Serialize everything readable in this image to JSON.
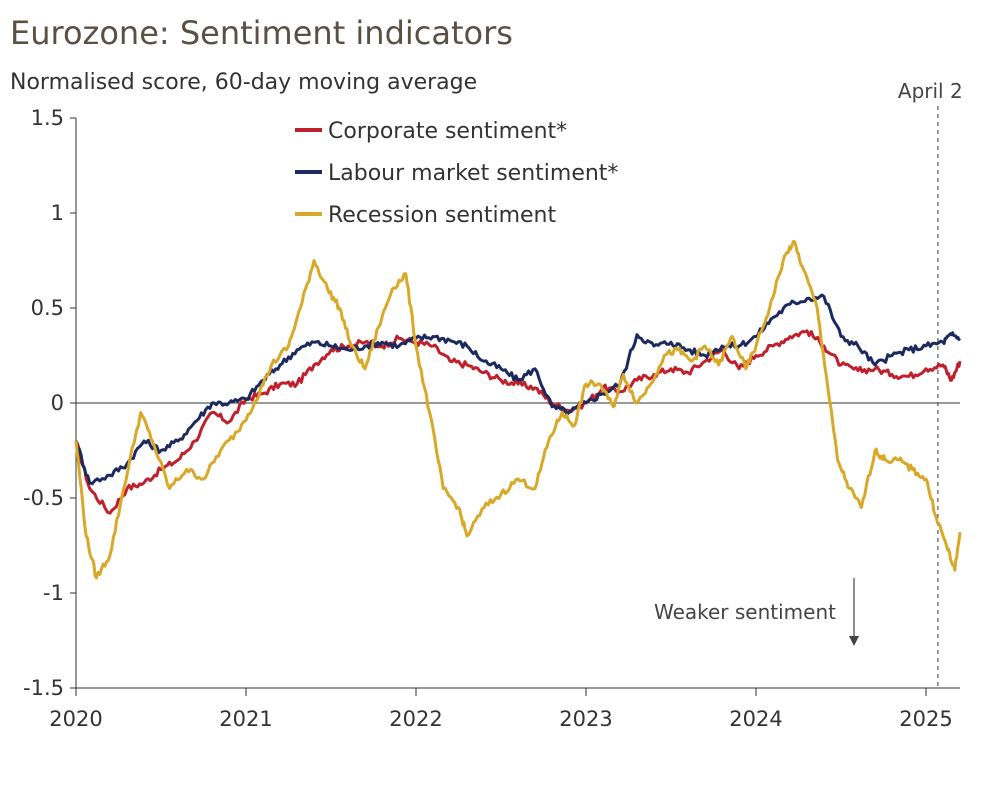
{
  "chart_data": {
    "type": "line",
    "title": "Eurozone: Sentiment indicators",
    "subtitle": "Normalised score, 60-day moving average",
    "xlabel": "",
    "ylabel": "",
    "xlim": [
      2020,
      2025.2
    ],
    "ylim": [
      -1.5,
      1.5
    ],
    "x_ticks": [
      "2020",
      "2021",
      "2022",
      "2023",
      "2024",
      "2025"
    ],
    "y_ticks": [
      "1.5",
      "1",
      "0.5",
      "0",
      "-0.5",
      "-1",
      "-1.5"
    ],
    "legend": [
      "Corporate sentiment*",
      "Labour market sentiment*",
      "Recession sentiment"
    ],
    "series": [
      {
        "name": "Corporate sentiment*",
        "color": "#c0202b",
        "points": [
          [
            2020.0,
            -0.2
          ],
          [
            2020.08,
            -0.45
          ],
          [
            2020.2,
            -0.58
          ],
          [
            2020.3,
            -0.45
          ],
          [
            2020.4,
            -0.42
          ],
          [
            2020.5,
            -0.35
          ],
          [
            2020.6,
            -0.3
          ],
          [
            2020.7,
            -0.2
          ],
          [
            2020.8,
            -0.05
          ],
          [
            2020.9,
            -0.1
          ],
          [
            2021.0,
            0.02
          ],
          [
            2021.1,
            0.05
          ],
          [
            2021.2,
            0.1
          ],
          [
            2021.3,
            0.1
          ],
          [
            2021.4,
            0.2
          ],
          [
            2021.5,
            0.28
          ],
          [
            2021.6,
            0.3
          ],
          [
            2021.7,
            0.32
          ],
          [
            2021.8,
            0.3
          ],
          [
            2021.9,
            0.34
          ],
          [
            2022.0,
            0.32
          ],
          [
            2022.1,
            0.3
          ],
          [
            2022.2,
            0.22
          ],
          [
            2022.3,
            0.2
          ],
          [
            2022.4,
            0.16
          ],
          [
            2022.5,
            0.12
          ],
          [
            2022.6,
            0.1
          ],
          [
            2022.7,
            0.08
          ],
          [
            2022.8,
            0.0
          ],
          [
            2022.9,
            -0.04
          ],
          [
            2023.0,
            0.0
          ],
          [
            2023.1,
            0.08
          ],
          [
            2023.2,
            0.06
          ],
          [
            2023.3,
            0.12
          ],
          [
            2023.4,
            0.15
          ],
          [
            2023.5,
            0.18
          ],
          [
            2023.6,
            0.16
          ],
          [
            2023.7,
            0.22
          ],
          [
            2023.8,
            0.28
          ],
          [
            2023.9,
            0.18
          ],
          [
            2024.0,
            0.25
          ],
          [
            2024.1,
            0.3
          ],
          [
            2024.2,
            0.35
          ],
          [
            2024.3,
            0.38
          ],
          [
            2024.4,
            0.3
          ],
          [
            2024.5,
            0.2
          ],
          [
            2024.6,
            0.17
          ],
          [
            2024.7,
            0.18
          ],
          [
            2024.8,
            0.15
          ],
          [
            2024.9,
            0.14
          ],
          [
            2025.0,
            0.18
          ],
          [
            2025.1,
            0.2
          ],
          [
            2025.15,
            0.12
          ],
          [
            2025.2,
            0.22
          ]
        ]
      },
      {
        "name": "Labour market sentiment*",
        "color": "#1c2a5e",
        "points": [
          [
            2020.0,
            -0.2
          ],
          [
            2020.08,
            -0.42
          ],
          [
            2020.2,
            -0.38
          ],
          [
            2020.3,
            -0.32
          ],
          [
            2020.4,
            -0.2
          ],
          [
            2020.5,
            -0.25
          ],
          [
            2020.6,
            -0.2
          ],
          [
            2020.7,
            -0.1
          ],
          [
            2020.8,
            -0.0
          ],
          [
            2020.9,
            0.0
          ],
          [
            2021.0,
            0.02
          ],
          [
            2021.1,
            0.12
          ],
          [
            2021.2,
            0.2
          ],
          [
            2021.3,
            0.28
          ],
          [
            2021.4,
            0.32
          ],
          [
            2021.5,
            0.3
          ],
          [
            2021.6,
            0.28
          ],
          [
            2021.7,
            0.3
          ],
          [
            2021.8,
            0.32
          ],
          [
            2021.9,
            0.3
          ],
          [
            2022.0,
            0.34
          ],
          [
            2022.1,
            0.35
          ],
          [
            2022.2,
            0.33
          ],
          [
            2022.3,
            0.3
          ],
          [
            2022.4,
            0.22
          ],
          [
            2022.5,
            0.18
          ],
          [
            2022.6,
            0.12
          ],
          [
            2022.7,
            0.18
          ],
          [
            2022.8,
            -0.02
          ],
          [
            2022.9,
            -0.05
          ],
          [
            2023.0,
            0.0
          ],
          [
            2023.1,
            0.05
          ],
          [
            2023.2,
            0.1
          ],
          [
            2023.3,
            0.36
          ],
          [
            2023.4,
            0.3
          ],
          [
            2023.5,
            0.32
          ],
          [
            2023.6,
            0.28
          ],
          [
            2023.7,
            0.25
          ],
          [
            2023.8,
            0.3
          ],
          [
            2023.9,
            0.3
          ],
          [
            2024.0,
            0.35
          ],
          [
            2024.1,
            0.45
          ],
          [
            2024.2,
            0.52
          ],
          [
            2024.3,
            0.55
          ],
          [
            2024.4,
            0.56
          ],
          [
            2024.5,
            0.35
          ],
          [
            2024.6,
            0.3
          ],
          [
            2024.7,
            0.2
          ],
          [
            2024.8,
            0.25
          ],
          [
            2024.9,
            0.28
          ],
          [
            2025.0,
            0.3
          ],
          [
            2025.1,
            0.32
          ],
          [
            2025.15,
            0.36
          ],
          [
            2025.2,
            0.34
          ]
        ]
      },
      {
        "name": "Recession sentiment",
        "color": "#d8a928",
        "points": [
          [
            2020.0,
            -0.2
          ],
          [
            2020.06,
            -0.7
          ],
          [
            2020.12,
            -0.92
          ],
          [
            2020.2,
            -0.8
          ],
          [
            2020.28,
            -0.45
          ],
          [
            2020.38,
            -0.05
          ],
          [
            2020.45,
            -0.2
          ],
          [
            2020.55,
            -0.45
          ],
          [
            2020.65,
            -0.35
          ],
          [
            2020.75,
            -0.4
          ],
          [
            2020.85,
            -0.25
          ],
          [
            2020.95,
            -0.15
          ],
          [
            2021.05,
            0.0
          ],
          [
            2021.15,
            0.2
          ],
          [
            2021.25,
            0.3
          ],
          [
            2021.32,
            0.5
          ],
          [
            2021.4,
            0.75
          ],
          [
            2021.48,
            0.6
          ],
          [
            2021.55,
            0.5
          ],
          [
            2021.62,
            0.3
          ],
          [
            2021.7,
            0.18
          ],
          [
            2021.78,
            0.4
          ],
          [
            2021.86,
            0.6
          ],
          [
            2021.94,
            0.68
          ],
          [
            2022.0,
            0.3
          ],
          [
            2022.08,
            -0.05
          ],
          [
            2022.16,
            -0.45
          ],
          [
            2022.25,
            -0.55
          ],
          [
            2022.3,
            -0.7
          ],
          [
            2022.4,
            -0.55
          ],
          [
            2022.5,
            -0.48
          ],
          [
            2022.6,
            -0.4
          ],
          [
            2022.7,
            -0.45
          ],
          [
            2022.78,
            -0.2
          ],
          [
            2022.86,
            -0.05
          ],
          [
            2022.93,
            -0.12
          ],
          [
            2023.0,
            0.1
          ],
          [
            2023.08,
            0.1
          ],
          [
            2023.16,
            -0.02
          ],
          [
            2023.22,
            0.15
          ],
          [
            2023.3,
            0.0
          ],
          [
            2023.38,
            0.1
          ],
          [
            2023.46,
            0.25
          ],
          [
            2023.54,
            0.28
          ],
          [
            2023.62,
            0.22
          ],
          [
            2023.7,
            0.3
          ],
          [
            2023.78,
            0.2
          ],
          [
            2023.86,
            0.35
          ],
          [
            2023.94,
            0.18
          ],
          [
            2024.0,
            0.3
          ],
          [
            2024.08,
            0.5
          ],
          [
            2024.16,
            0.75
          ],
          [
            2024.22,
            0.85
          ],
          [
            2024.28,
            0.7
          ],
          [
            2024.36,
            0.5
          ],
          [
            2024.42,
            0.1
          ],
          [
            2024.48,
            -0.3
          ],
          [
            2024.55,
            -0.45
          ],
          [
            2024.62,
            -0.55
          ],
          [
            2024.7,
            -0.25
          ],
          [
            2024.76,
            -0.3
          ],
          [
            2024.84,
            -0.3
          ],
          [
            2024.92,
            -0.35
          ],
          [
            2025.0,
            -0.4
          ],
          [
            2025.06,
            -0.6
          ],
          [
            2025.12,
            -0.75
          ],
          [
            2025.17,
            -0.88
          ],
          [
            2025.2,
            -0.68
          ]
        ]
      }
    ],
    "annotations": [
      {
        "text": "April 2",
        "x": 2025.07,
        "type": "vertical-dashed-line"
      },
      {
        "text": "Weaker sentiment",
        "arrow": "down"
      }
    ]
  }
}
